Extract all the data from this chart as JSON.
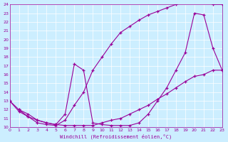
{
  "xlabel": "Windchill (Refroidissement éolien,°C)",
  "bg_color": "#cceeff",
  "line_color": "#990099",
  "xlim": [
    0,
    23
  ],
  "ylim": [
    10,
    24
  ],
  "xticks": [
    0,
    1,
    2,
    3,
    4,
    5,
    6,
    7,
    8,
    9,
    10,
    11,
    12,
    13,
    14,
    15,
    16,
    17,
    18,
    19,
    20,
    21,
    22,
    23
  ],
  "yticks": [
    10,
    11,
    12,
    13,
    14,
    15,
    16,
    17,
    18,
    19,
    20,
    21,
    22,
    23,
    24
  ],
  "line1_x": [
    0,
    1,
    2,
    3,
    4,
    5,
    6,
    7,
    8,
    9,
    10,
    11,
    12,
    13,
    14,
    15,
    16,
    17,
    18,
    19,
    20,
    21,
    22,
    23
  ],
  "line1_y": [
    13.0,
    12.0,
    11.2,
    10.5,
    10.3,
    10.2,
    10.8,
    12.5,
    14.0,
    16.5,
    18.0,
    19.5,
    20.8,
    21.5,
    22.2,
    22.8,
    23.2,
    23.6,
    24.0,
    24.5,
    24.5,
    24.5,
    24.0,
    24.0
  ],
  "line2_x": [
    1,
    2,
    3,
    4,
    5,
    6,
    7,
    8,
    9,
    10,
    11,
    12,
    13,
    14,
    15,
    16,
    17,
    18,
    19,
    20,
    21,
    22,
    23
  ],
  "line2_y": [
    12.0,
    11.5,
    10.8,
    10.5,
    10.3,
    11.5,
    17.2,
    16.5,
    10.5,
    10.3,
    10.2,
    10.2,
    10.2,
    10.5,
    11.5,
    13.0,
    14.5,
    16.5,
    18.5,
    23.0,
    22.8,
    19.0,
    16.5
  ],
  "line3_x": [
    0,
    1,
    2,
    3,
    4,
    5,
    6,
    7,
    8,
    9,
    10,
    11,
    12,
    13,
    14,
    15,
    16,
    17,
    18,
    19,
    20,
    21,
    22,
    23
  ],
  "line3_y": [
    13.0,
    11.8,
    11.2,
    10.8,
    10.5,
    10.3,
    10.2,
    10.2,
    10.2,
    10.2,
    10.5,
    10.8,
    11.0,
    11.5,
    12.0,
    12.5,
    13.2,
    13.8,
    14.5,
    15.2,
    15.8,
    16.0,
    16.5,
    16.5
  ]
}
